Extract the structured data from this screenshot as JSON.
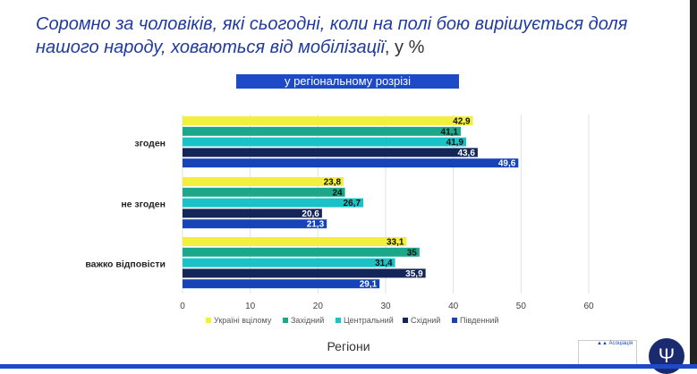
{
  "title": "Соромно за чоловіків, які сьогодні, коли на полі бою вирішується доля нашого народу, ховаються від мобілізації",
  "title_unit": ", у %",
  "subtitle": "у регіональному розрізі",
  "chart_data": {
    "type": "bar",
    "orientation": "horizontal",
    "categories": [
      "згоден",
      "не згоден",
      "важко відповісти"
    ],
    "series": [
      {
        "name": "Україні вцілому",
        "color": "#f2f03c",
        "values": [
          42.9,
          23.8,
          33.1
        ]
      },
      {
        "name": "Західний",
        "color": "#1ba88a",
        "values": [
          41.1,
          24,
          35
        ]
      },
      {
        "name": "Центральний",
        "color": "#19c2c6",
        "values": [
          41.9,
          26.7,
          31.4
        ]
      },
      {
        "name": "Східний",
        "color": "#142659",
        "values": [
          43.6,
          20.6,
          35.9
        ]
      },
      {
        "name": "Південний",
        "color": "#1644b8",
        "values": [
          49.6,
          21.3,
          29.1
        ]
      }
    ],
    "value_labels": [
      [
        "42,9",
        "23,8",
        "33,1"
      ],
      [
        "41,1",
        "24",
        "35"
      ],
      [
        "41,9",
        "26,7",
        "31,4"
      ],
      [
        "43,6",
        "20,6",
        "35,9"
      ],
      [
        "49,6",
        "21,3",
        "29,1"
      ]
    ],
    "xlim": [
      0,
      60
    ],
    "xticks": [
      "0",
      "10",
      "20",
      "30",
      "40",
      "50",
      "60"
    ],
    "xlabel": "Регіони",
    "grid": true,
    "legend": "bottom"
  },
  "logo_text": "Асоціація політичних психологів України"
}
